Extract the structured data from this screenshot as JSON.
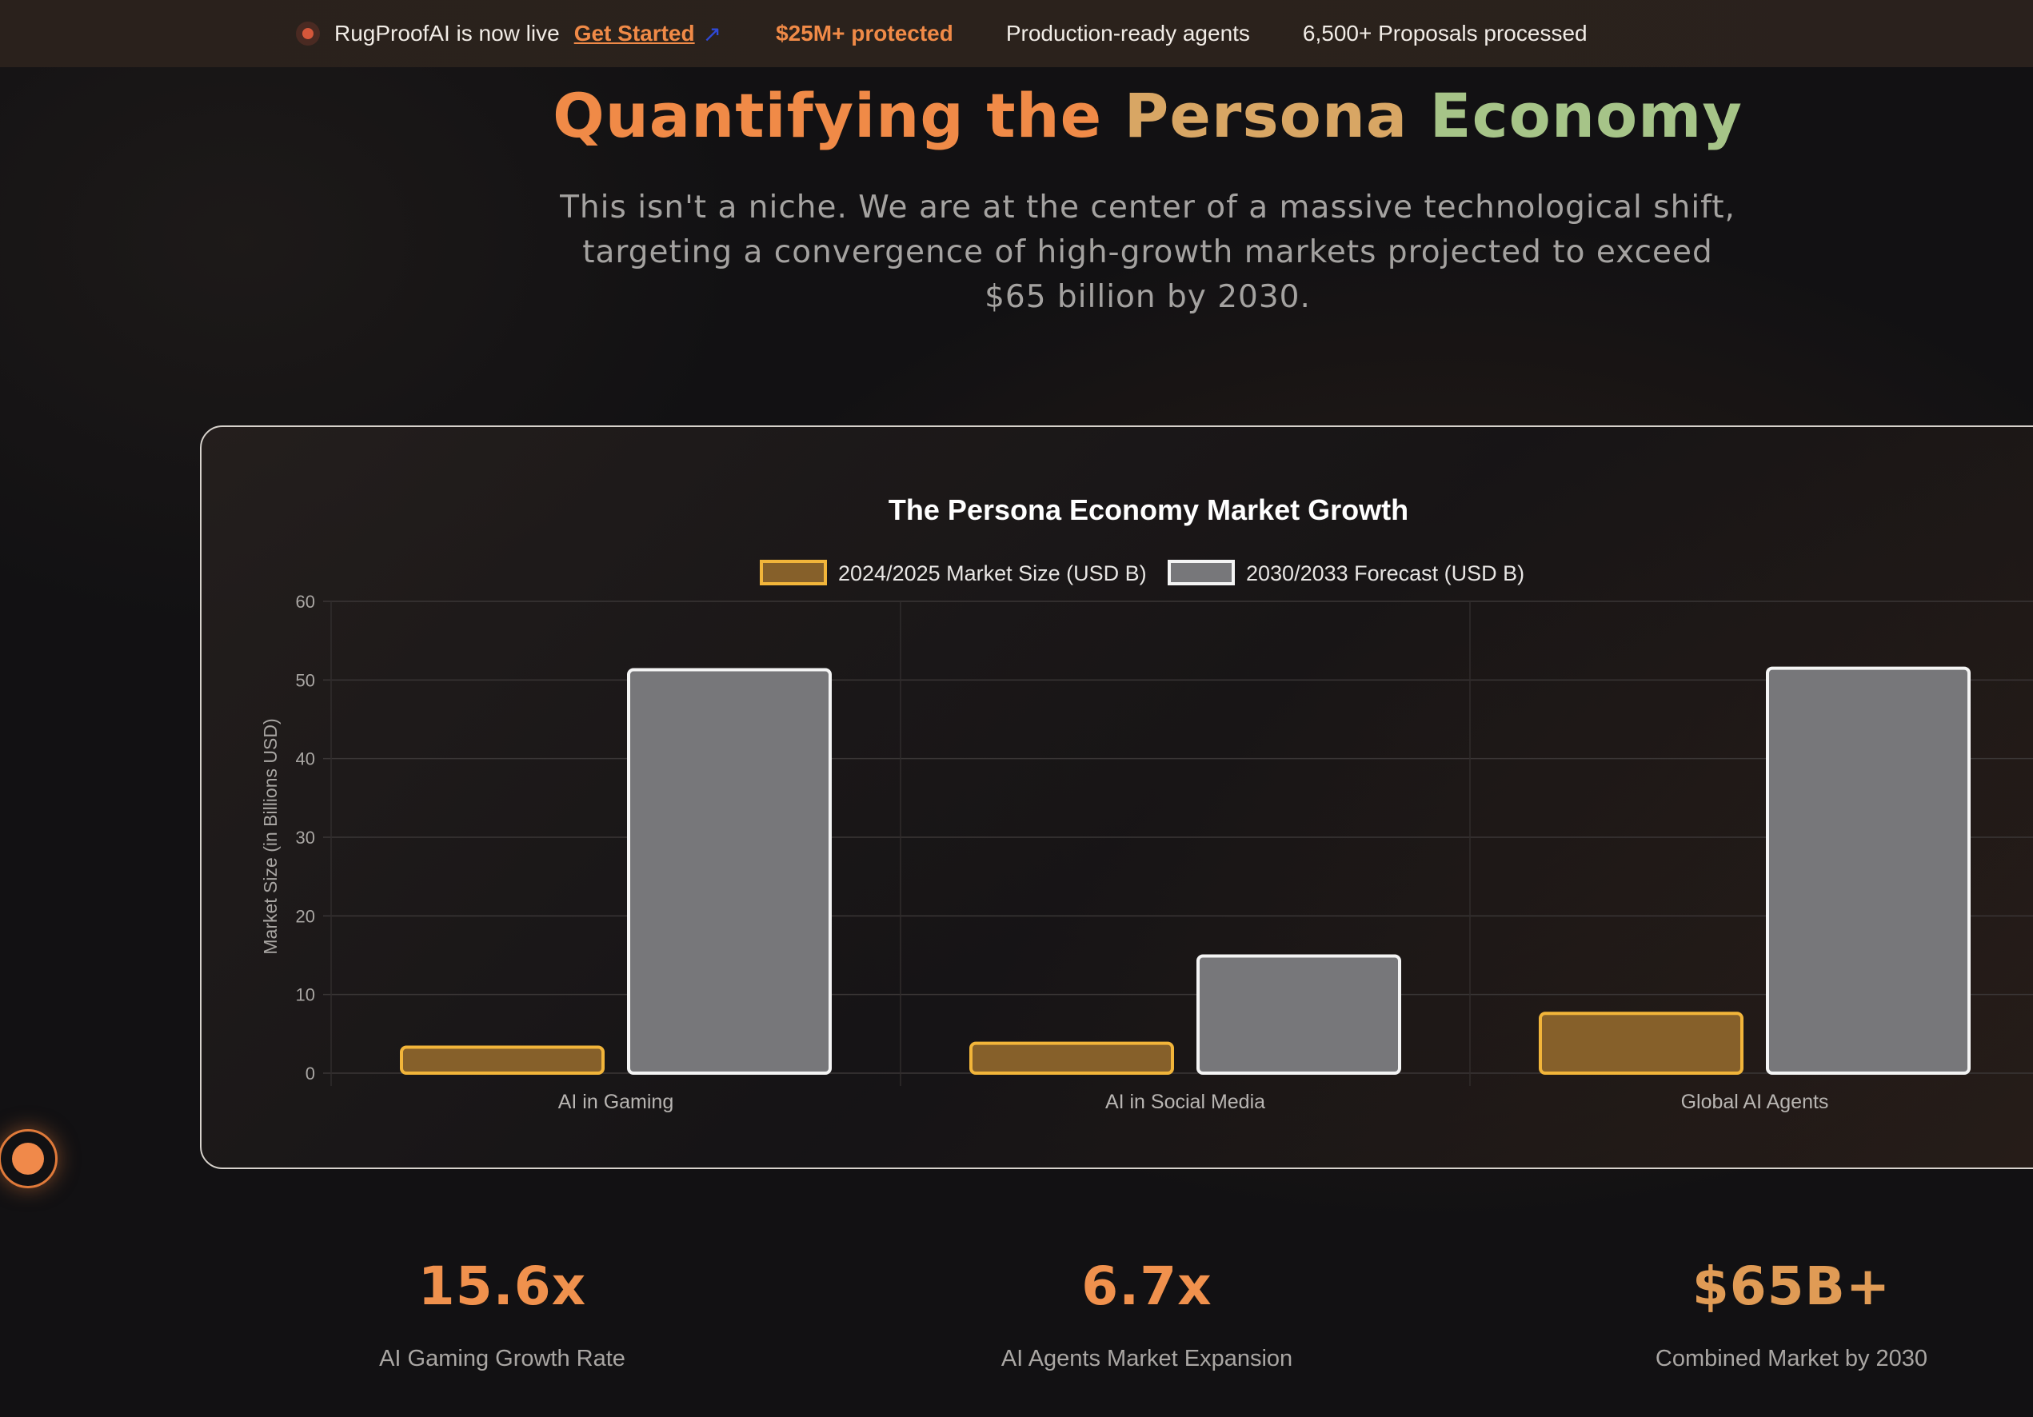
{
  "topbar": {
    "live_text": "RugProofAI is now live",
    "cta_label": "Get Started",
    "cta_arrow": "↗",
    "protected": "$25M+ protected",
    "agents": "Production-ready agents",
    "proposals": "6,500+ Proposals processed"
  },
  "heading": {
    "part1": "Quantifying the ",
    "part2": "Persona ",
    "part3": "Economy"
  },
  "subtitle": "This isn't a niche. We are at the center of a massive technological shift, targeting a convergence of high-growth markets projected to exceed $65 billion by 2030.",
  "chart_data": {
    "type": "bar",
    "title": "The Persona Economy Market Growth",
    "ylabel": "Market Size (in Billions USD)",
    "xlabel": "",
    "categories": [
      "AI in Gaming",
      "AI in Social Media",
      "Global AI Agents"
    ],
    "series": [
      {
        "name": "2024/2025 Market Size (USD B)",
        "values": [
          3.3,
          3.8,
          7.6
        ],
        "fill": "#86602a",
        "stroke": "#f2b53a"
      },
      {
        "name": "2030/2033 Forecast (USD B)",
        "values": [
          51.3,
          14.9,
          51.5
        ],
        "fill": "#77777a",
        "stroke": "#f4f4f4"
      }
    ],
    "ylim": [
      0,
      60
    ],
    "yticks": [
      "0",
      "10",
      "20",
      "30",
      "40",
      "50",
      "60"
    ],
    "grid": true,
    "legend": "top-center"
  },
  "stats": [
    {
      "value": "15.6x",
      "label": "AI Gaming Growth Rate"
    },
    {
      "value": "6.7x",
      "label": "AI Agents Market Expansion"
    },
    {
      "value": "$65B+",
      "label": "Combined Market by 2030"
    }
  ],
  "colors": {
    "accent": "#f08a47",
    "accent_gold": "#d8a664",
    "accent_green": "#a6c488",
    "link_arrow": "#2f49d6"
  }
}
